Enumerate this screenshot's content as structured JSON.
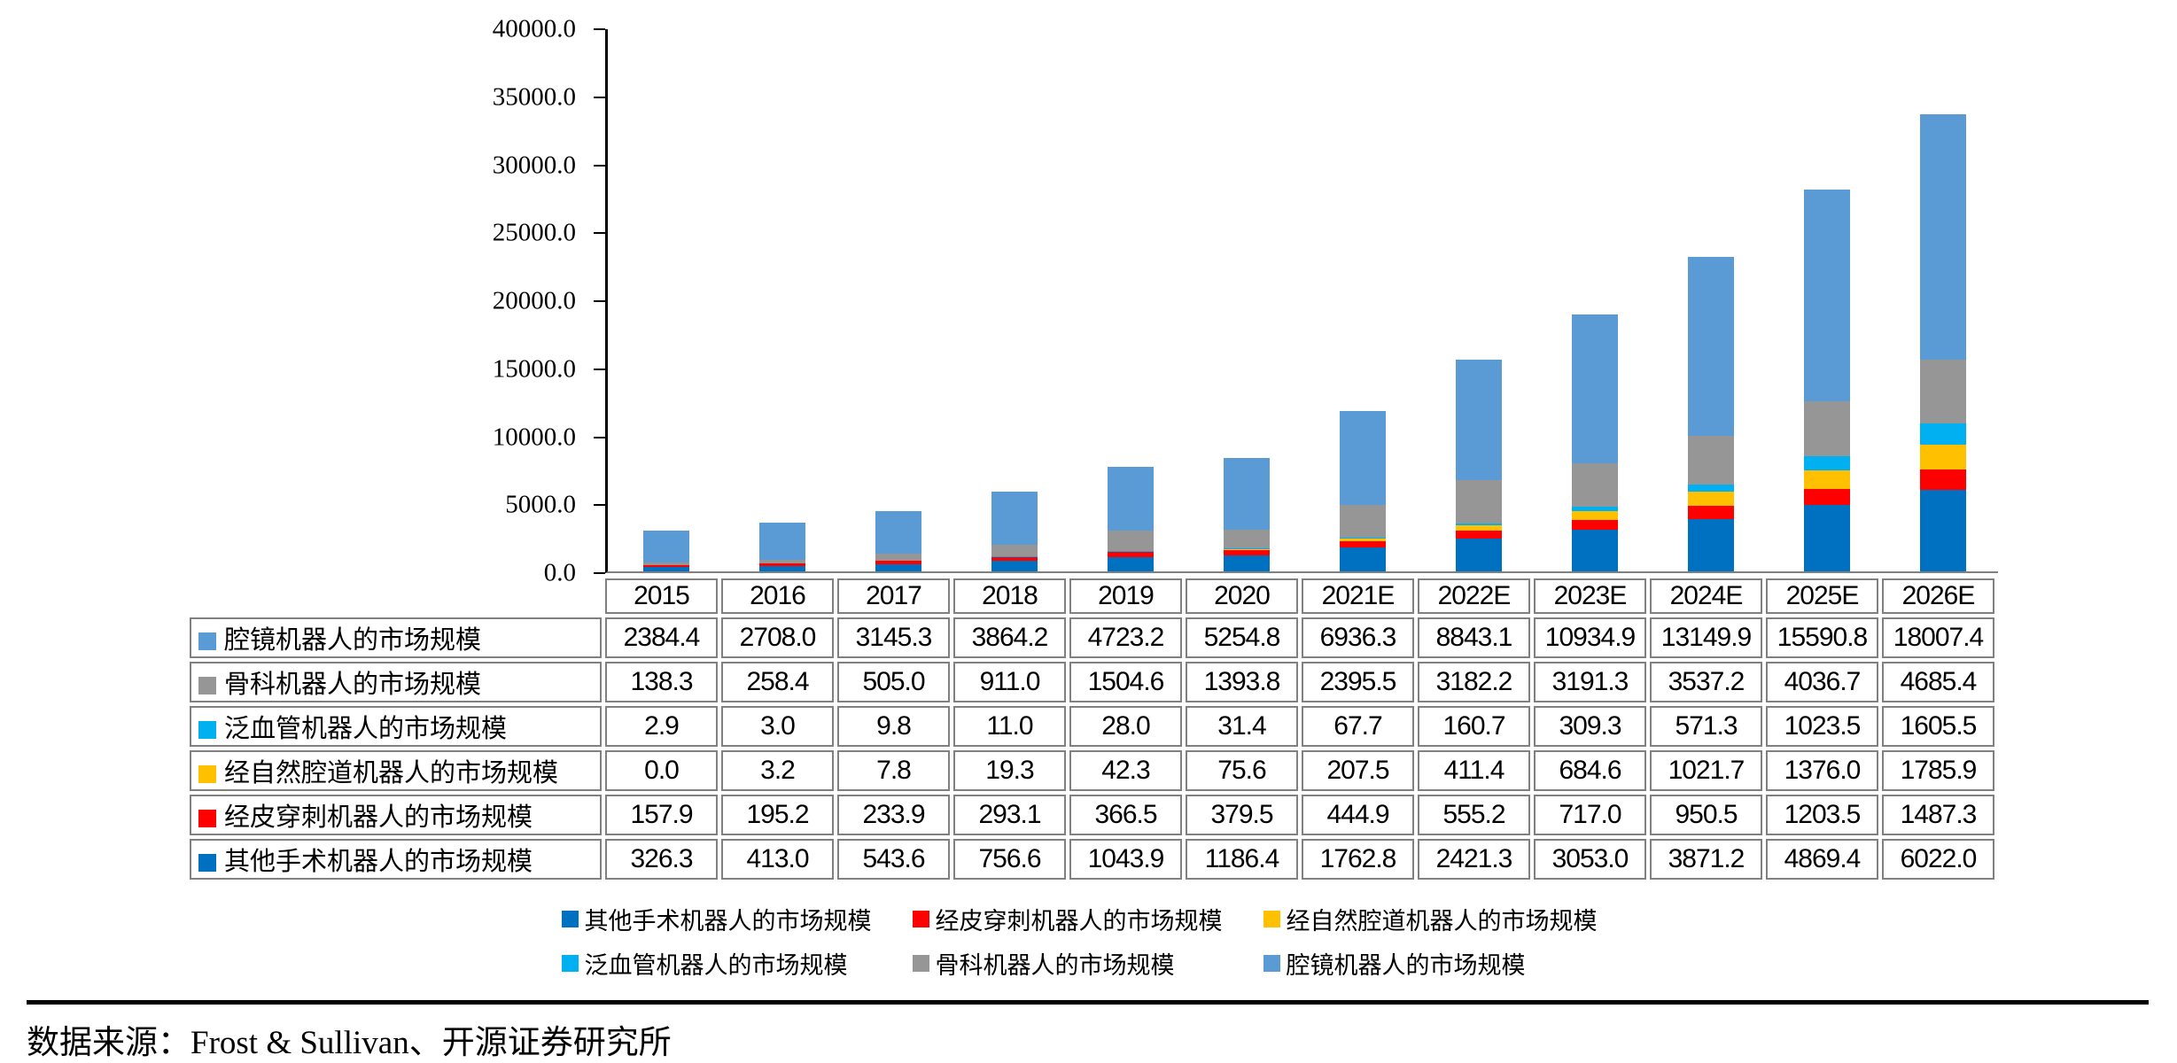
{
  "chart_data": {
    "type": "bar",
    "stacked": true,
    "title": "",
    "xlabel": "",
    "ylabel": "",
    "categories": [
      "2015",
      "2016",
      "2017",
      "2018",
      "2019",
      "2020",
      "2021E",
      "2022E",
      "2023E",
      "2024E",
      "2025E",
      "2026E"
    ],
    "series": [
      {
        "name": "腔镜机器人的市场规模",
        "color": "#5B9BD5",
        "values": [
          2384.4,
          2708.0,
          3145.3,
          3864.2,
          4723.2,
          5254.8,
          6936.3,
          8843.1,
          10934.9,
          13149.9,
          15590.8,
          18007.4
        ]
      },
      {
        "name": "骨科机器人的市场规模",
        "color": "#969696",
        "values": [
          138.3,
          258.4,
          505.0,
          911.0,
          1504.6,
          1393.8,
          2395.5,
          3182.2,
          3191.3,
          3537.2,
          4036.7,
          4685.4
        ]
      },
      {
        "name": "泛血管机器人的市场规模",
        "color": "#00B0F0",
        "values": [
          2.9,
          3.0,
          9.8,
          11.0,
          28.0,
          31.4,
          67.7,
          160.7,
          309.3,
          571.3,
          1023.5,
          1605.5
        ]
      },
      {
        "name": "经自然腔道机器人的市场规模",
        "color": "#FFC000",
        "values": [
          0.0,
          3.2,
          7.8,
          19.3,
          42.3,
          75.6,
          207.5,
          411.4,
          684.6,
          1021.7,
          1376.0,
          1785.9
        ]
      },
      {
        "name": "经皮穿刺机器人的市场规模",
        "color": "#FF0000",
        "values": [
          157.9,
          195.2,
          233.9,
          293.1,
          366.5,
          379.5,
          444.9,
          555.2,
          717.0,
          950.5,
          1203.5,
          1487.3
        ]
      },
      {
        "name": "其他手术机器人的市场规模",
        "color": "#0070C0",
        "values": [
          326.3,
          413.0,
          543.6,
          756.6,
          1043.9,
          1186.4,
          1762.8,
          2421.3,
          3053.0,
          3871.2,
          4869.4,
          6022.0
        ]
      }
    ],
    "stack_order_bottom_to_top": [
      "其他手术机器人的市场规模",
      "经皮穿刺机器人的市场规模",
      "经自然腔道机器人的市场规模",
      "泛血管机器人的市场规模",
      "骨科机器人的市场规模",
      "腔镜机器人的市场规模"
    ],
    "ylim": [
      0,
      40000
    ],
    "ytick_step": 5000,
    "ytick_labels": [
      "0.0",
      "5000.0",
      "10000.0",
      "15000.0",
      "20000.0",
      "25000.0",
      "30000.0",
      "35000.0",
      "40000.0"
    ],
    "value_decimals": 1,
    "grid": false,
    "legend_position": "bottom",
    "legend_rows": [
      [
        "其他手术机器人的市场规模",
        "经皮穿刺机器人的市场规模",
        "经自然腔道机器人的市场规模"
      ],
      [
        "泛血管机器人的市场规模",
        "骨科机器人的市场规模",
        "腔镜机器人的市场规模"
      ]
    ]
  },
  "footer": {
    "source_text": "数据来源：Frost & Sullivan、开源证券研究所"
  }
}
